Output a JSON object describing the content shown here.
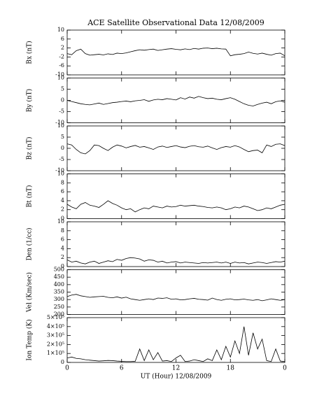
{
  "chart_data": [
    {
      "type": "line",
      "title": "ACE Satellite Observational Data   12/08/2009",
      "ylabel": "Bx (nT)",
      "ylim": [
        -10,
        10
      ],
      "yticks": [
        -10,
        -6,
        -2,
        2,
        6,
        10
      ],
      "xlim": [
        0,
        24
      ],
      "color": "#000000",
      "x": [
        0,
        0.5,
        1,
        1.5,
        2,
        2.5,
        3,
        3.5,
        4,
        4.5,
        5,
        5.5,
        6,
        6.5,
        7,
        7.5,
        8,
        8.5,
        9,
        9.5,
        10,
        10.5,
        11,
        11.5,
        12,
        12.5,
        13,
        13.5,
        14,
        14.5,
        15,
        15.5,
        16,
        16.5,
        17,
        17.5,
        18,
        18.5,
        19,
        19.5,
        20,
        20.5,
        21,
        21.5,
        22,
        22.5,
        23,
        23.5,
        24
      ],
      "values": [
        -0.5,
        -1,
        0.8,
        1.5,
        -0.5,
        -1.2,
        -1,
        -0.8,
        -1.1,
        -0.6,
        -0.9,
        -0.3,
        -0.5,
        -0.2,
        0.3,
        0.8,
        1.2,
        1.0,
        1.3,
        1.5,
        0.9,
        1.2,
        1.5,
        1.7,
        1.4,
        1.2,
        1.6,
        1.3,
        1.8,
        1.5,
        1.9,
        2.0,
        1.7,
        1.9,
        1.6,
        1.5,
        -1.5,
        -1.0,
        -0.8,
        -0.5,
        0.2,
        -0.4,
        -0.7,
        -0.3,
        -0.8,
        -1.2,
        -0.5,
        -0.3,
        -1.5
      ]
    },
    {
      "type": "line",
      "ylabel": "By (nT)",
      "ylim": [
        -10,
        10
      ],
      "yticks": [
        -10,
        -5,
        0,
        5,
        10
      ],
      "xlim": [
        0,
        24
      ],
      "color": "#000000",
      "x": [
        0,
        0.5,
        1,
        1.5,
        2,
        2.5,
        3,
        3.5,
        4,
        4.5,
        5,
        5.5,
        6,
        6.5,
        7,
        7.5,
        8,
        8.5,
        9,
        9.5,
        10,
        10.5,
        11,
        11.5,
        12,
        12.5,
        13,
        13.5,
        14,
        14.5,
        15,
        15.5,
        16,
        16.5,
        17,
        17.5,
        18,
        18.5,
        19,
        19.5,
        20,
        20.5,
        21,
        21.5,
        22,
        22.5,
        23,
        23.5,
        24
      ],
      "values": [
        0,
        -0.5,
        -1,
        -1.5,
        -1.8,
        -2,
        -1.6,
        -1.2,
        -1.8,
        -1.4,
        -1,
        -0.8,
        -0.5,
        -0.3,
        -0.6,
        -0.2,
        0,
        0.3,
        -0.4,
        0.2,
        0.5,
        0.3,
        0.8,
        0.5,
        0.2,
        1.2,
        0.6,
        1.5,
        1.0,
        1.8,
        1.2,
        0.8,
        1.0,
        0.5,
        0.3,
        0.8,
        1.2,
        0.5,
        -0.5,
        -1.5,
        -2.2,
        -2.5,
        -1.8,
        -1.2,
        -0.8,
        -1.5,
        -0.6,
        -0.2,
        -0.8
      ]
    },
    {
      "type": "line",
      "ylabel": "Bz (nT)",
      "ylim": [
        -10,
        10
      ],
      "yticks": [
        -10,
        -5,
        0,
        5,
        10
      ],
      "xlim": [
        0,
        24
      ],
      "color": "#000000",
      "x": [
        0,
        0.5,
        1,
        1.5,
        2,
        2.5,
        3,
        3.5,
        4,
        4.5,
        5,
        5.5,
        6,
        6.5,
        7,
        7.5,
        8,
        8.5,
        9,
        9.5,
        10,
        10.5,
        11,
        11.5,
        12,
        12.5,
        13,
        13.5,
        14,
        14.5,
        15,
        15.5,
        16,
        16.5,
        17,
        17.5,
        18,
        18.5,
        19,
        19.5,
        20,
        20.5,
        21,
        21.5,
        22,
        22.5,
        23,
        23.5,
        24
      ],
      "values": [
        2,
        1.5,
        -0.5,
        -2,
        -2.5,
        -1,
        1.5,
        1.2,
        0,
        -1,
        0.5,
        1.5,
        1,
        0.2,
        0.8,
        1.3,
        0.5,
        0.8,
        0.2,
        -0.5,
        0.6,
        1.0,
        0.4,
        0.8,
        1.2,
        0.6,
        0.3,
        0.9,
        1.2,
        0.7,
        0.5,
        1,
        0.2,
        -0.5,
        0.3,
        0.8,
        0.5,
        1.2,
        0.6,
        -0.5,
        -1.5,
        -1,
        -0.8,
        -2,
        1.5,
        0.8,
        1.8,
        2,
        1.2
      ]
    },
    {
      "type": "line",
      "ylabel": "Bt (nT)",
      "ylim": [
        0,
        10
      ],
      "yticks": [
        0,
        2,
        4,
        6,
        8,
        10
      ],
      "xlim": [
        0,
        24
      ],
      "color": "#000000",
      "x": [
        0,
        0.5,
        1,
        1.5,
        2,
        2.5,
        3,
        3.5,
        4,
        4.5,
        5,
        5.5,
        6,
        6.5,
        7,
        7.5,
        8,
        8.5,
        9,
        9.5,
        10,
        10.5,
        11,
        11.5,
        12,
        12.5,
        13,
        13.5,
        14,
        14.5,
        15,
        15.5,
        16,
        16.5,
        17,
        17.5,
        18,
        18.5,
        19,
        19.5,
        20,
        20.5,
        21,
        21.5,
        22,
        22.5,
        23,
        23.5,
        24
      ],
      "values": [
        3.2,
        2.6,
        2.2,
        3.2,
        3.6,
        3.0,
        2.8,
        2.5,
        3.2,
        4.0,
        3.4,
        3.0,
        2.4,
        2.0,
        2.2,
        1.5,
        2.0,
        2.4,
        2.2,
        2.8,
        2.6,
        2.4,
        2.8,
        2.6,
        2.7,
        3.0,
        2.8,
        2.9,
        3.0,
        2.8,
        2.7,
        2.5,
        2.4,
        2.6,
        2.4,
        2.0,
        2.2,
        2.6,
        2.4,
        2.8,
        2.6,
        2.2,
        1.8,
        2.0,
        2.4,
        2.2,
        2.6,
        3.0,
        3.2
      ]
    },
    {
      "type": "line",
      "ylabel": "Den (1/cc)",
      "ylim": [
        0,
        10
      ],
      "yticks": [
        0,
        2,
        4,
        6,
        8,
        10
      ],
      "xlim": [
        0,
        24
      ],
      "color": "#000000",
      "x": [
        0,
        0.5,
        1,
        1.5,
        2,
        2.5,
        3,
        3.5,
        4,
        4.5,
        5,
        5.5,
        6,
        6.5,
        7,
        7.5,
        8,
        8.5,
        9,
        9.5,
        10,
        10.5,
        11,
        11.5,
        12,
        12.5,
        13,
        13.5,
        14,
        14.5,
        15,
        15.5,
        16,
        16.5,
        17,
        17.5,
        18,
        18.5,
        19,
        19.5,
        20,
        20.5,
        21,
        21.5,
        22,
        22.5,
        23,
        23.5,
        24
      ],
      "values": [
        1.5,
        1.0,
        1.2,
        0.8,
        0.6,
        1.0,
        1.2,
        0.7,
        1.0,
        1.3,
        1.1,
        1.6,
        1.4,
        1.8,
        2.0,
        1.9,
        1.7,
        1.2,
        1.5,
        1.4,
        1.0,
        1.2,
        0.8,
        1.0,
        1.1,
        0.8,
        1.0,
        0.9,
        0.8,
        0.7,
        0.9,
        0.8,
        0.9,
        1.0,
        0.8,
        1.0,
        0.7,
        1.0,
        0.8,
        0.9,
        0.6,
        0.8,
        1.0,
        0.9,
        0.7,
        0.9,
        1.1,
        1.0,
        1.2
      ]
    },
    {
      "type": "line",
      "ylabel": "Vel (Km/sec)",
      "ylim": [
        200,
        500
      ],
      "yticks": [
        200,
        250,
        300,
        350,
        400,
        450,
        500
      ],
      "xlim": [
        0,
        24
      ],
      "color": "#000000",
      "x": [
        0,
        0.5,
        1,
        1.5,
        2,
        2.5,
        3,
        3.5,
        4,
        4.5,
        5,
        5.5,
        6,
        6.5,
        7,
        7.5,
        8,
        8.5,
        9,
        9.5,
        10,
        10.5,
        11,
        11.5,
        12,
        12.5,
        13,
        13.5,
        14,
        14.5,
        15,
        15.5,
        16,
        16.5,
        17,
        17.5,
        18,
        18.5,
        19,
        19.5,
        20,
        20.5,
        21,
        21.5,
        22,
        22.5,
        23,
        23.5,
        24
      ],
      "values": [
        320,
        330,
        335,
        325,
        320,
        315,
        318,
        320,
        322,
        315,
        312,
        318,
        310,
        316,
        305,
        300,
        295,
        300,
        305,
        300,
        310,
        308,
        312,
        302,
        305,
        298,
        300,
        305,
        308,
        302,
        300,
        296,
        310,
        300,
        295,
        302,
        305,
        298,
        300,
        303,
        298,
        295,
        300,
        292,
        298,
        305,
        300,
        295,
        300
      ]
    },
    {
      "type": "line",
      "ylabel": "Ion Temp (K)",
      "xlabel": "UT (Hour)   12/08/2009",
      "ylim": [
        0,
        500000
      ],
      "yticks": [
        0,
        {
          "value": 100000,
          "label": "1×10⁵"
        },
        {
          "value": 200000,
          "label": "2×10⁵"
        },
        {
          "value": 300000,
          "label": "3×10⁵"
        },
        {
          "value": 400000,
          "label": "4×10⁵"
        },
        {
          "value": 500000,
          "label": "5×10⁵"
        }
      ],
      "xlim": [
        0,
        24
      ],
      "xticks": [
        0,
        6,
        12,
        18,
        {
          "value": 24,
          "label": "0"
        }
      ],
      "color": "#000000",
      "x": [
        0,
        0.5,
        1,
        1.5,
        2,
        2.5,
        3,
        3.5,
        4,
        4.5,
        5,
        5.5,
        6,
        6.5,
        7,
        7.5,
        8,
        8.5,
        9,
        9.5,
        10,
        10.5,
        11,
        11.5,
        12,
        12.5,
        13,
        13.5,
        14,
        14.5,
        15,
        15.5,
        16,
        16.5,
        17,
        17.5,
        18,
        18.5,
        19,
        19.5,
        20,
        20.5,
        21,
        21.5,
        22,
        22.5,
        23,
        23.5,
        24
      ],
      "values": [
        50000,
        60000,
        45000,
        40000,
        30000,
        25000,
        20000,
        15000,
        18000,
        22000,
        20000,
        15000,
        12000,
        10000,
        10000,
        12000,
        150000,
        20000,
        140000,
        30000,
        110000,
        15000,
        20000,
        10000,
        50000,
        80000,
        10000,
        15000,
        30000,
        20000,
        10000,
        40000,
        20000,
        140000,
        30000,
        180000,
        60000,
        240000,
        100000,
        400000,
        80000,
        330000,
        150000,
        260000,
        20000,
        10000,
        150000,
        15000,
        10000
      ]
    }
  ]
}
